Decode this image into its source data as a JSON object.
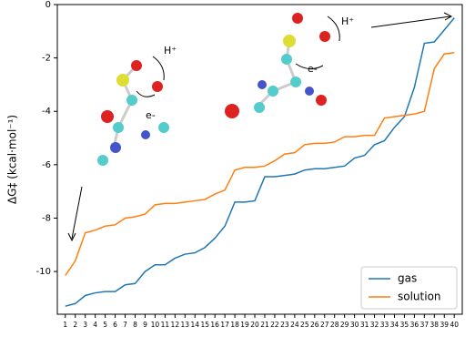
{
  "chart_data": {
    "type": "line",
    "y_label": "ΔG‡ (kcal·mol⁻¹)",
    "annotations": [
      "H⁺",
      "e-",
      "H⁺",
      "e-"
    ],
    "x": [
      1,
      2,
      3,
      4,
      5,
      6,
      7,
      8,
      9,
      10,
      11,
      12,
      13,
      14,
      15,
      16,
      17,
      18,
      19,
      20,
      21,
      22,
      23,
      24,
      25,
      26,
      27,
      28,
      29,
      30,
      31,
      32,
      33,
      34,
      35,
      36,
      37,
      38,
      39,
      40
    ],
    "xticks": [
      1,
      2,
      3,
      4,
      5,
      6,
      7,
      8,
      9,
      10,
      11,
      12,
      13,
      14,
      15,
      16,
      17,
      18,
      19,
      20,
      21,
      22,
      23,
      24,
      25,
      26,
      27,
      28,
      29,
      30,
      31,
      32,
      33,
      34,
      35,
      36,
      37,
      38,
      39,
      40
    ],
    "xlim": [
      0.2,
      40.8
    ],
    "ylim": [
      -11.6,
      0
    ],
    "yticks": [
      -10,
      -8,
      -6,
      -4,
      -2,
      0
    ],
    "legend": "lower right",
    "series": [
      {
        "name": "gas",
        "color": "#1f77b4",
        "values": [
          -11.3,
          -11.2,
          -10.9,
          -10.8,
          -10.75,
          -10.75,
          -10.5,
          -10.45,
          -10.0,
          -9.75,
          -9.75,
          -9.5,
          -9.35,
          -9.3,
          -9.1,
          -8.75,
          -8.3,
          -7.4,
          -7.4,
          -7.35,
          -6.45,
          -6.45,
          -6.4,
          -6.35,
          -6.2,
          -6.15,
          -6.15,
          -6.1,
          -6.05,
          -5.75,
          -5.65,
          -5.25,
          -5.1,
          -4.6,
          -4.2,
          -3.1,
          -1.45,
          -1.4,
          -0.95,
          -0.5
        ]
      },
      {
        "name": "solution",
        "color": "#ff7f0e",
        "values": [
          -10.15,
          -9.6,
          -8.55,
          -8.45,
          -8.3,
          -8.25,
          -8.0,
          -7.95,
          -7.85,
          -7.5,
          -7.45,
          -7.45,
          -7.4,
          -7.35,
          -7.3,
          -7.1,
          -6.95,
          -6.2,
          -6.1,
          -6.1,
          -6.05,
          -5.85,
          -5.6,
          -5.55,
          -5.25,
          -5.2,
          -5.2,
          -5.15,
          -4.95,
          -4.95,
          -4.9,
          -4.9,
          -4.25,
          -4.2,
          -4.15,
          -4.1,
          -4.0,
          -2.4,
          -1.85,
          -1.8
        ]
      }
    ]
  }
}
